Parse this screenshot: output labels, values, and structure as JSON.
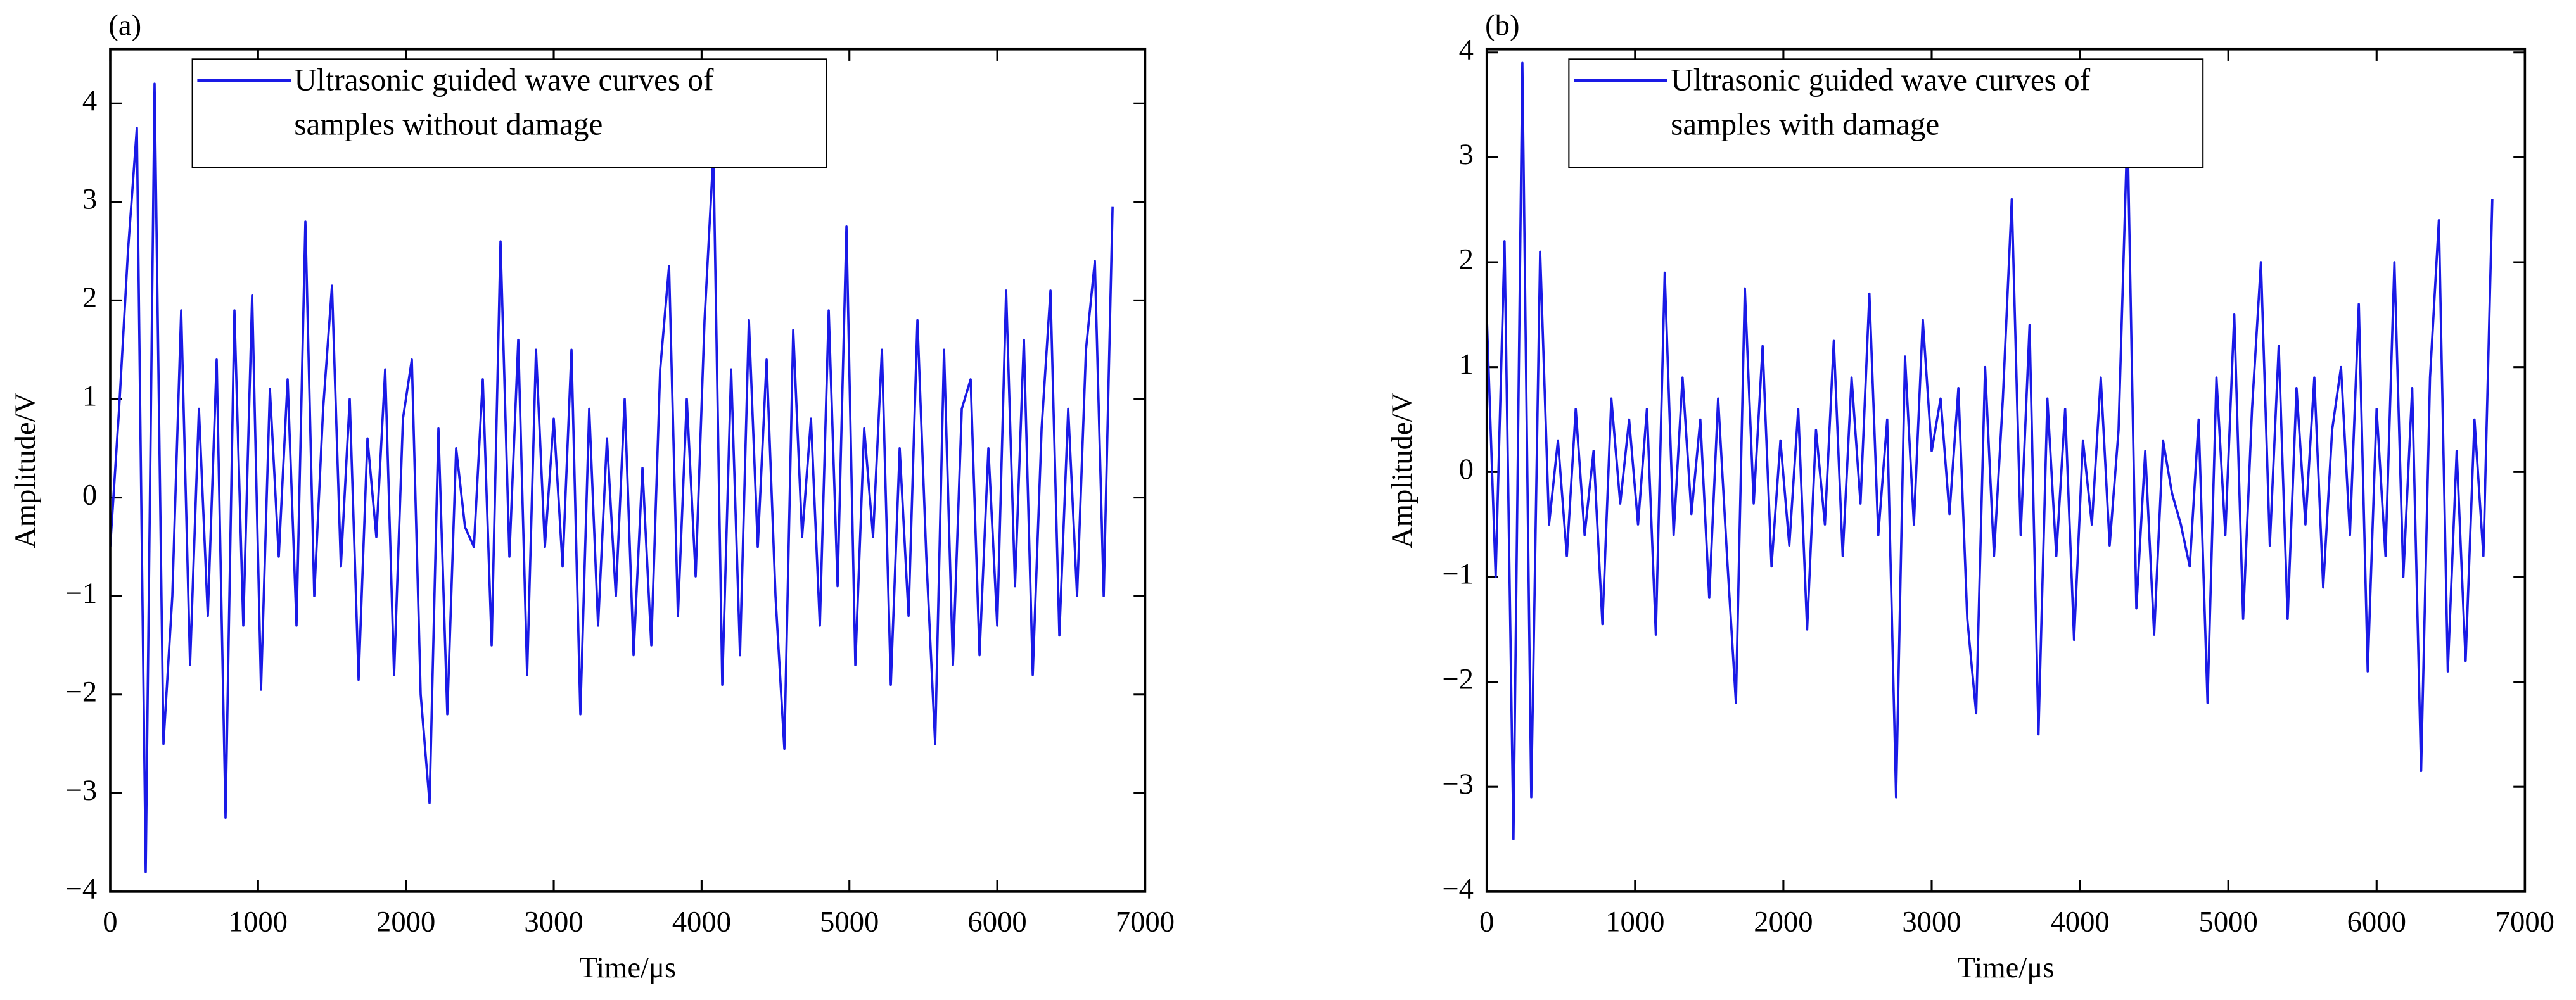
{
  "chart_data": [
    {
      "type": "line",
      "title": "(a)",
      "xlabel": "Time/μs",
      "ylabel": "Amplitude/V",
      "xlim": [
        0,
        7000
      ],
      "ylim": [
        -4,
        4.55
      ],
      "xticks": [
        0,
        1000,
        2000,
        3000,
        4000,
        5000,
        6000,
        7000
      ],
      "yticks": [
        {
          "value": -4,
          "label": "−4"
        },
        {
          "value": -3,
          "label": "−3"
        },
        {
          "value": -2,
          "label": "−2"
        },
        {
          "value": -1,
          "label": "−1"
        },
        0,
        1,
        2,
        3,
        4
      ],
      "x": [
        0,
        60,
        120,
        180,
        240,
        300,
        360,
        420,
        480,
        540,
        600,
        660,
        720,
        780,
        840,
        900,
        960,
        1020,
        1080,
        1140,
        1200,
        1260,
        1320,
        1380,
        1440,
        1500,
        1560,
        1620,
        1680,
        1740,
        1800,
        1860,
        1920,
        1980,
        2040,
        2100,
        2160,
        2220,
        2280,
        2340,
        2400,
        2460,
        2520,
        2580,
        2640,
        2700,
        2760,
        2820,
        2880,
        2940,
        3000,
        3060,
        3120,
        3180,
        3240,
        3300,
        3360,
        3420,
        3480,
        3540,
        3600,
        3660,
        3720,
        3780,
        3840,
        3900,
        3960,
        4020,
        4080,
        4140,
        4200,
        4260,
        4320,
        4380,
        4440,
        4500,
        4560,
        4620,
        4680,
        4740,
        4800,
        4860,
        4920,
        4980,
        5040,
        5100,
        5160,
        5220,
        5280,
        5340,
        5400,
        5460,
        5520,
        5580,
        5640,
        5700,
        5760,
        5820,
        5880,
        5940,
        6000,
        6060,
        6120,
        6180,
        6240,
        6300,
        6360,
        6420,
        6480,
        6540,
        6600,
        6660,
        6720,
        6780
      ],
      "series": [
        {
          "name": "Ultrasonic guided wave curves of samples without damage",
          "color": "#1a1ae6",
          "values": [
            -0.5,
            0.9,
            2.5,
            3.75,
            -3.8,
            4.2,
            -2.5,
            -1.0,
            1.9,
            -1.7,
            0.9,
            -1.2,
            1.4,
            -3.25,
            1.9,
            -1.3,
            2.05,
            -1.95,
            1.1,
            -0.6,
            1.2,
            -1.3,
            2.8,
            -1.0,
            0.9,
            2.15,
            -0.7,
            1.0,
            -1.85,
            0.6,
            -0.4,
            1.3,
            -1.8,
            0.8,
            1.4,
            -2.0,
            -3.1,
            0.7,
            -2.2,
            0.5,
            -0.3,
            -0.5,
            1.2,
            -1.5,
            2.6,
            -0.6,
            1.6,
            -1.8,
            1.5,
            -0.5,
            0.8,
            -0.7,
            1.5,
            -2.2,
            0.9,
            -1.3,
            0.6,
            -1.0,
            1.0,
            -1.6,
            0.3,
            -1.5,
            1.3,
            2.35,
            -1.2,
            1.0,
            -0.8,
            1.8,
            3.5,
            -1.9,
            1.3,
            -1.6,
            1.8,
            -0.5,
            1.4,
            -1.0,
            -2.55,
            1.7,
            -0.4,
            0.8,
            -1.3,
            1.9,
            -0.9,
            2.75,
            -1.7,
            0.7,
            -0.4,
            1.5,
            -1.9,
            0.5,
            -1.2,
            1.8,
            -0.6,
            -2.5,
            1.5,
            -1.7,
            0.9,
            1.2,
            -1.6,
            0.5,
            -1.3,
            2.1,
            -0.9,
            1.6,
            -1.8,
            0.7,
            2.1,
            -1.4,
            0.9,
            -1.0,
            1.5,
            2.4,
            -1.0,
            2.95
          ]
        }
      ]
    },
    {
      "type": "line",
      "title": "(b)",
      "xlabel": "Time/μs",
      "ylabel": "Amplitude/V",
      "xlim": [
        0,
        7000
      ],
      "ylim": [
        -4,
        4.03
      ],
      "xticks": [
        0,
        1000,
        2000,
        3000,
        4000,
        5000,
        6000,
        7000
      ],
      "yticks": [
        {
          "value": -4,
          "label": "−4"
        },
        {
          "value": -3,
          "label": "−3"
        },
        {
          "value": -2,
          "label": "−2"
        },
        {
          "value": -1,
          "label": "−1"
        },
        0,
        1,
        2,
        3,
        4
      ],
      "x": [
        0,
        60,
        120,
        180,
        240,
        300,
        360,
        420,
        480,
        540,
        600,
        660,
        720,
        780,
        840,
        900,
        960,
        1020,
        1080,
        1140,
        1200,
        1260,
        1320,
        1380,
        1440,
        1500,
        1560,
        1620,
        1680,
        1740,
        1800,
        1860,
        1920,
        1980,
        2040,
        2100,
        2160,
        2220,
        2280,
        2340,
        2400,
        2460,
        2520,
        2580,
        2640,
        2700,
        2760,
        2820,
        2880,
        2940,
        3000,
        3060,
        3120,
        3180,
        3240,
        3300,
        3360,
        3420,
        3480,
        3540,
        3600,
        3660,
        3720,
        3780,
        3840,
        3900,
        3960,
        4020,
        4080,
        4140,
        4200,
        4260,
        4320,
        4380,
        4440,
        4500,
        4560,
        4620,
        4680,
        4740,
        4800,
        4860,
        4920,
        4980,
        5040,
        5100,
        5160,
        5220,
        5280,
        5340,
        5400,
        5460,
        5520,
        5580,
        5640,
        5700,
        5760,
        5820,
        5880,
        5940,
        6000,
        6060,
        6120,
        6180,
        6240,
        6300,
        6360,
        6420,
        6480,
        6540,
        6600,
        6660,
        6720,
        6780
      ],
      "series": [
        {
          "name": "Ultrasonic guided wave curves of samples with damage",
          "color": "#1a1ae6",
          "values": [
            1.5,
            -1.0,
            2.2,
            -3.5,
            3.9,
            -3.1,
            2.1,
            -0.5,
            0.3,
            -0.8,
            0.6,
            -0.6,
            0.2,
            -1.45,
            0.7,
            -0.3,
            0.5,
            -0.5,
            0.6,
            -1.55,
            1.9,
            -0.6,
            0.9,
            -0.4,
            0.5,
            -1.2,
            0.7,
            -0.8,
            -2.2,
            1.75,
            -0.3,
            1.2,
            -0.9,
            0.3,
            -0.7,
            0.6,
            -1.5,
            0.4,
            -0.5,
            1.25,
            -0.8,
            0.9,
            -0.3,
            1.7,
            -0.6,
            0.5,
            -3.1,
            1.1,
            -0.5,
            1.45,
            0.2,
            0.7,
            -0.4,
            0.8,
            -1.4,
            -2.3,
            1.0,
            -0.8,
            0.7,
            2.6,
            -0.6,
            1.4,
            -2.5,
            0.7,
            -0.8,
            0.6,
            -1.6,
            0.3,
            -0.5,
            0.9,
            -0.7,
            0.4,
            3.3,
            -1.3,
            0.2,
            -1.55,
            0.3,
            -0.2,
            -0.5,
            -0.9,
            0.5,
            -2.2,
            0.9,
            -0.6,
            1.5,
            -1.4,
            0.6,
            2.0,
            -0.7,
            1.2,
            -1.4,
            0.8,
            -0.5,
            0.9,
            -1.1,
            0.4,
            1.0,
            -0.6,
            1.6,
            -1.9,
            0.6,
            -0.8,
            2.0,
            -1.0,
            0.8,
            -2.85,
            0.9,
            2.4,
            -1.9,
            0.2,
            -1.8,
            0.5,
            -0.8,
            2.6
          ]
        }
      ]
    }
  ]
}
